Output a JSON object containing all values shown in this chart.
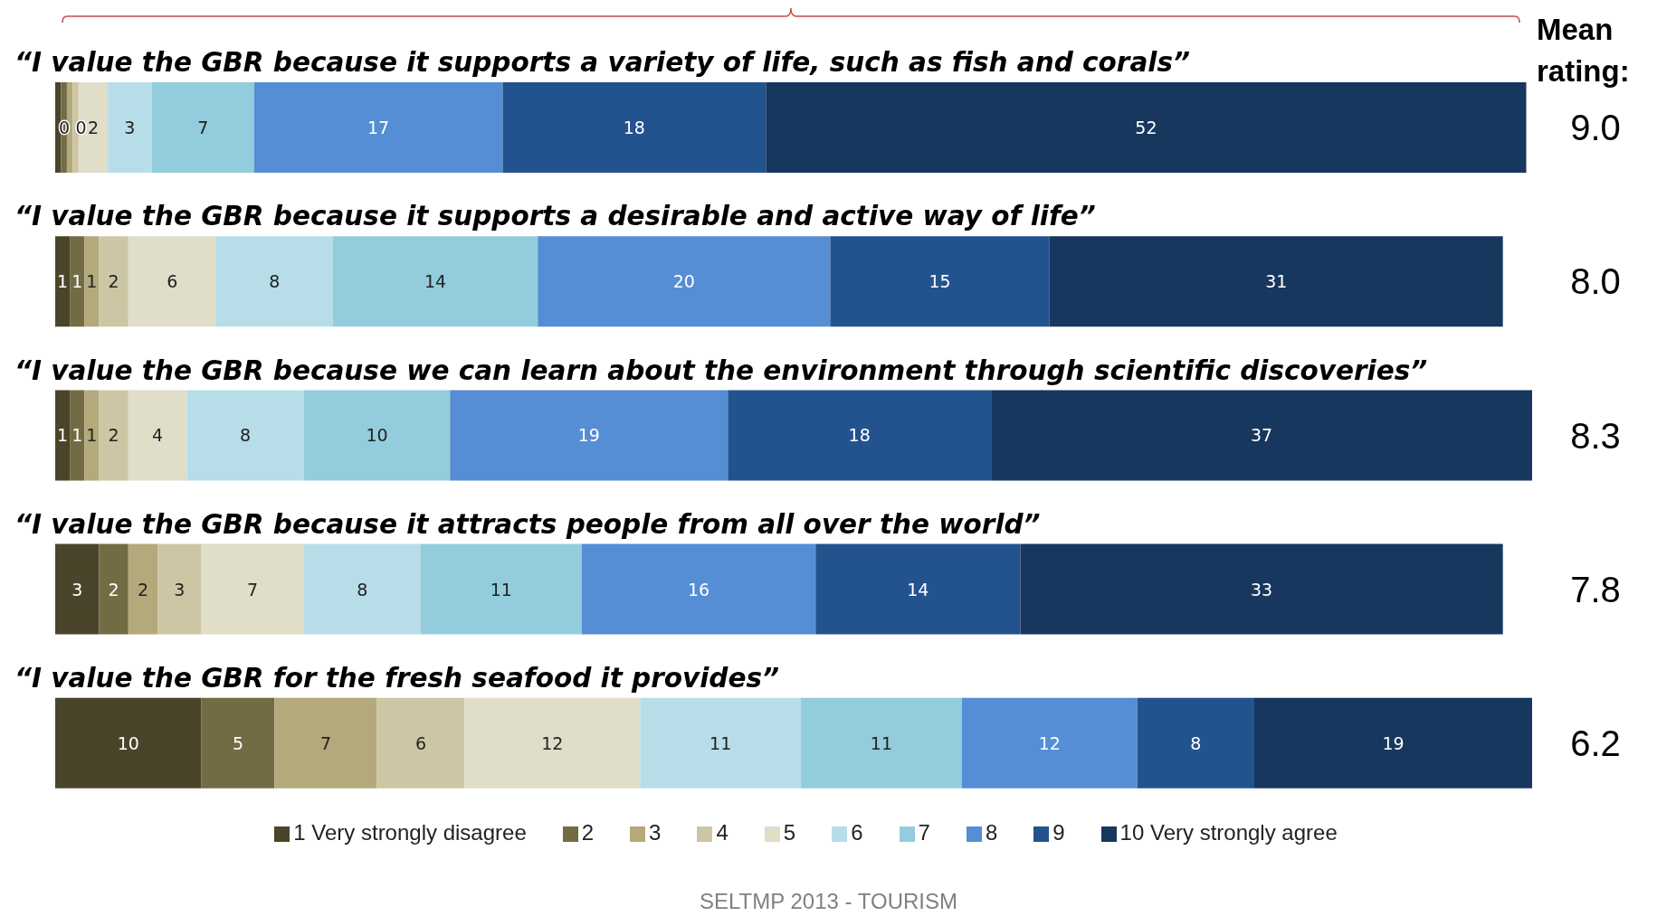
{
  "chart_data": {
    "type": "bar",
    "orientation": "horizontal",
    "stacked": true,
    "legend": "bottom",
    "categories": [
      "“I value the GBR because it supports a variety of life, such as fish and corals”",
      "“I value the GBR because it supports a desirable and active way of life”",
      "“I value the GBR because we can learn about the environment through scientific discoveries”",
      "“I value the GBR because it attracts people from all over the world”",
      "“I value the GBR for the fresh seafood it provides”"
    ],
    "series": [
      {
        "name": "1 Very strongly disagree",
        "color": "#4a452a",
        "values": [
          0.4,
          1,
          1,
          3,
          10
        ],
        "value_labels": [
          null,
          "1",
          "1",
          "3",
          "10"
        ]
      },
      {
        "name": "2",
        "color": "#736b43",
        "values": [
          0.4,
          1,
          1,
          2,
          5
        ],
        "value_labels": [
          null,
          "1",
          "1",
          "2",
          "5"
        ]
      },
      {
        "name": "3",
        "color": "#b3a97a",
        "values": [
          0.4,
          1,
          1,
          2,
          7
        ],
        "value_labels": [
          "0",
          "1",
          "1",
          "2",
          "7"
        ]
      },
      {
        "name": "4",
        "color": "#cdc6a4",
        "values": [
          0.4,
          2,
          2,
          3,
          6
        ],
        "value_labels": [
          "0",
          "2",
          "2",
          "3",
          "6"
        ]
      },
      {
        "name": "5",
        "color": "#e0ddc8",
        "values": [
          2,
          6,
          4,
          7,
          12
        ],
        "value_labels": [
          "2",
          "6",
          "4",
          "7",
          "12"
        ]
      },
      {
        "name": "6",
        "color": "#b7dde8",
        "values": [
          3,
          8,
          8,
          8,
          11
        ],
        "value_labels": [
          "3",
          "8",
          "8",
          "8",
          "11"
        ]
      },
      {
        "name": "7",
        "color": "#93cddd",
        "values": [
          7,
          14,
          10,
          11,
          11
        ],
        "value_labels": [
          "7",
          "14",
          "10",
          "11",
          "11"
        ]
      },
      {
        "name": "8",
        "color": "#558ed5",
        "values": [
          17,
          20,
          19,
          16,
          12
        ],
        "value_labels": [
          "17",
          "20",
          "19",
          "16",
          "12"
        ]
      },
      {
        "name": "9",
        "color": "#23538f",
        "values": [
          18,
          15,
          18,
          14,
          8
        ],
        "value_labels": [
          "18",
          "15",
          "18",
          "14",
          "8"
        ]
      },
      {
        "name": "10 Very strongly agree",
        "color": "#17375e",
        "values": [
          52,
          31,
          37,
          33,
          19
        ],
        "value_labels": [
          "52",
          "31",
          "37",
          "33",
          "19"
        ]
      }
    ],
    "annotations": [
      "Mean rating:",
      "9.0",
      "8.0",
      "8.3",
      "7.8",
      "6.2",
      "SELTMP 2013 - TOURISM"
    ]
  }
}
